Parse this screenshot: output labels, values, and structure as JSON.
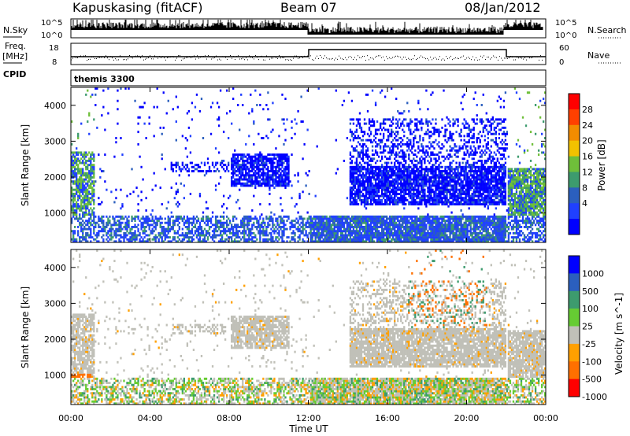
{
  "header": {
    "site": "Kapuskasing (fitACF)",
    "beam": "Beam 07",
    "date": "08/Jan/2012"
  },
  "side_labels": {
    "nsky": "N.Sky",
    "freq_line1": "Freq.",
    "freq_line2": "[MHz]",
    "cpid": "CPID",
    "nsearch": "N.Search",
    "nave": "Nave"
  },
  "strip_ticks": {
    "noise_left": [
      "10^5",
      "10^0"
    ],
    "noise_right": [
      "10^5",
      "10^0"
    ],
    "freq_left": [
      "18",
      "8"
    ],
    "nave_right": [
      "60",
      "0"
    ]
  },
  "cpid_label": "themis 3300",
  "chart_data": [
    {
      "type": "heatmap",
      "name": "power",
      "ylabel": "Slant Range [km]",
      "yticks": [
        "4000",
        "3000",
        "2000",
        "1000"
      ],
      "colorbar_label": "Power [dB]",
      "colorbar_ticks": [
        "28",
        "24",
        "20",
        "16",
        "12",
        "8",
        "4"
      ],
      "colors": [
        "#0000ff",
        "#2040ff",
        "#2b5fbe",
        "#3d9b6e",
        "#6fbf3a",
        "#f2c200",
        "#f28c00",
        "#ff4000",
        "#ff0000"
      ]
    },
    {
      "type": "heatmap",
      "name": "velocity",
      "ylabel": "Slant Range [km]",
      "yticks": [
        "4000",
        "3000",
        "2000",
        "1000"
      ],
      "colorbar_label": "Velocity [m s^-1]",
      "colorbar_ticks": [
        "1000",
        "500",
        "100",
        "25",
        "-25",
        "-100",
        "-500",
        "-1000"
      ],
      "colors": [
        "#0000ff",
        "#2b5fbe",
        "#3d9b6e",
        "#66cc33",
        "#c0c0b8",
        "#ffa000",
        "#ff7000",
        "#ff0000"
      ]
    }
  ],
  "x_axis": {
    "label": "Time UT",
    "ticks": [
      "00:00",
      "04:00",
      "08:00",
      "12:00",
      "16:00",
      "20:00",
      "00:00"
    ]
  }
}
